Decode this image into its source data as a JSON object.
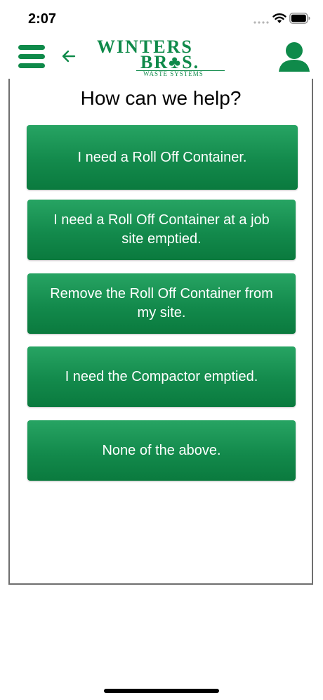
{
  "status_bar": {
    "time": "2:07",
    "icons": [
      "signal-dots-icon",
      "wifi-icon",
      "battery-icon"
    ]
  },
  "header": {
    "menu_icon": "hamburger-menu-icon",
    "back_icon": "back-arrow-icon",
    "logo": {
      "line1": "WINTERS",
      "line2": "BR♣S.",
      "subtitle": "WASTE SYSTEMS"
    },
    "profile_icon": "user-profile-icon"
  },
  "main": {
    "title": "How can we help?",
    "options": [
      {
        "label": "I need a Roll Off Container."
      },
      {
        "label": "I need a Roll Off Container at a job site emptied."
      },
      {
        "label": "Remove the Roll Off Container from my site."
      },
      {
        "label": "I need the Compactor emptied."
      },
      {
        "label": "None of the above."
      }
    ]
  },
  "colors": {
    "brand_green": "#0f8a4a",
    "button_gradient_top": "#27a463",
    "button_gradient_bottom": "#0a7a3e",
    "card_border": "#6f6f6f"
  }
}
